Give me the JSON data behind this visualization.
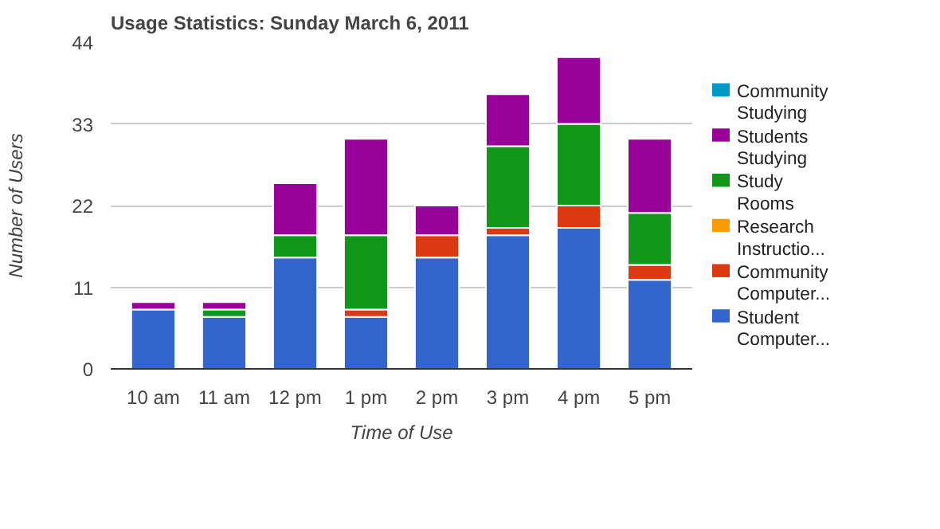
{
  "chart_data": {
    "type": "bar",
    "title": "Usage Statistics: Sunday March 6, 2011",
    "xlabel": "Time of Use",
    "ylabel": "Number of Users",
    "categories": [
      "10 am",
      "11 am",
      "12 pm",
      "1 pm",
      "2 pm",
      "3 pm",
      "4 pm",
      "5 pm"
    ],
    "stacked": true,
    "ylim": [
      0,
      44
    ],
    "yticks": [
      0,
      11,
      22,
      33,
      44
    ],
    "grid": "y",
    "legend": "right",
    "series": [
      {
        "name": "Student Computer...",
        "color": "#3366cc",
        "values": [
          8,
          7,
          15,
          7,
          15,
          18,
          19,
          12
        ]
      },
      {
        "name": "Community Computer...",
        "color": "#dc3912",
        "values": [
          0,
          0,
          0,
          1,
          3,
          1,
          3,
          2
        ]
      },
      {
        "name": "Research Instructio...",
        "color": "#ff9900",
        "values": [
          0,
          0,
          0,
          0,
          0,
          0,
          0,
          0
        ]
      },
      {
        "name": "Study Rooms",
        "color": "#109618",
        "values": [
          0,
          1,
          3,
          10,
          0,
          11,
          11,
          7
        ]
      },
      {
        "name": "Students Studying",
        "color": "#990099",
        "values": [
          1,
          1,
          7,
          13,
          4,
          7,
          9,
          10
        ]
      },
      {
        "name": "Community Studying",
        "color": "#0099c6",
        "values": [
          0,
          0,
          0,
          0,
          0,
          0,
          0,
          0
        ]
      }
    ]
  }
}
